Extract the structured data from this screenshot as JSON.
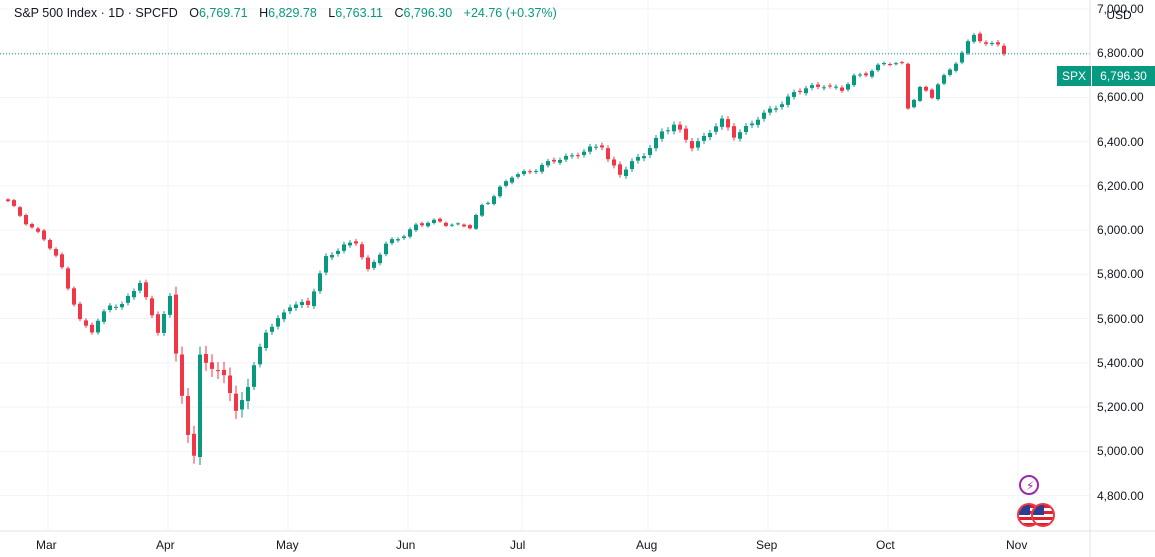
{
  "header": {
    "symbol": "S&P 500 Index · 1D · SPCFD",
    "open_label": "O",
    "open": "6,769.71",
    "high_label": "H",
    "high": "6,829.78",
    "low_label": "L",
    "low": "6,763.11",
    "close_label": "C",
    "close": "6,796.30",
    "change": "+24.76 (+0.37%)"
  },
  "currency": "USD",
  "last_price": {
    "symbol": "SPX",
    "value": "6,796.30"
  },
  "y_ticks": [
    "7,000.00",
    "6,800.00",
    "6,600.00",
    "6,400.00",
    "6,200.00",
    "6,000.00",
    "5,800.00",
    "5,600.00",
    "5,400.00",
    "5,200.00",
    "5,000.00",
    "4,800.00"
  ],
  "x_ticks": [
    "Mar",
    "Apr",
    "May",
    "Jun",
    "Jul",
    "Aug",
    "Sep",
    "Oct",
    "Nov"
  ],
  "icons": {
    "event": "lightning-icon",
    "economy": "us-flag-icon"
  },
  "colors": {
    "up": "#089981",
    "down": "#f23645",
    "grid": "#f0f3fa",
    "last_price_line": "#089981"
  },
  "chart_data": {
    "type": "candlestick",
    "ylim": [
      4640,
      7040
    ],
    "y_ticks": [
      4800,
      5000,
      5200,
      5400,
      5600,
      5800,
      6000,
      6200,
      6400,
      6600,
      6800,
      7000
    ],
    "x_month_labels": [
      "Mar",
      "Apr",
      "May",
      "Jun",
      "Jul",
      "Aug",
      "Sep",
      "Oct",
      "Nov"
    ],
    "last_price": 6796.3,
    "checkpoints": [
      {
        "i": 0,
        "v": 6125
      },
      {
        "i": 3,
        "v": 6040
      },
      {
        "i": 6,
        "v": 5960
      },
      {
        "i": 9,
        "v": 5830
      },
      {
        "i": 12,
        "v": 5590
      },
      {
        "i": 14,
        "v": 5540
      },
      {
        "i": 17,
        "v": 5670
      },
      {
        "i": 19,
        "v": 5660
      },
      {
        "i": 22,
        "v": 5760
      },
      {
        "i": 24,
        "v": 5620
      },
      {
        "i": 25,
        "v": 5550
      },
      {
        "i": 27,
        "v": 5690
      },
      {
        "i": 28,
        "v": 5440
      },
      {
        "i": 30,
        "v": 5070
      },
      {
        "i": 31,
        "v": 4980
      },
      {
        "i": 32,
        "v": 5450
      },
      {
        "i": 34,
        "v": 5360
      },
      {
        "i": 36,
        "v": 5350
      },
      {
        "i": 38,
        "v": 5180
      },
      {
        "i": 40,
        "v": 5300
      },
      {
        "i": 43,
        "v": 5540
      },
      {
        "i": 47,
        "v": 5660
      },
      {
        "i": 50,
        "v": 5660
      },
      {
        "i": 53,
        "v": 5880
      },
      {
        "i": 58,
        "v": 5950
      },
      {
        "i": 60,
        "v": 5820
      },
      {
        "i": 63,
        "v": 5930
      },
      {
        "i": 68,
        "v": 6020
      },
      {
        "i": 72,
        "v": 6040
      },
      {
        "i": 77,
        "v": 6010
      },
      {
        "i": 79,
        "v": 6110
      },
      {
        "i": 84,
        "v": 6240
      },
      {
        "i": 89,
        "v": 6290
      },
      {
        "i": 94,
        "v": 6340
      },
      {
        "i": 99,
        "v": 6380
      },
      {
        "i": 100,
        "v": 6320
      },
      {
        "i": 102,
        "v": 6260
      },
      {
        "i": 106,
        "v": 6340
      },
      {
        "i": 109,
        "v": 6450
      },
      {
        "i": 111,
        "v": 6470
      },
      {
        "i": 114,
        "v": 6380
      },
      {
        "i": 119,
        "v": 6490
      },
      {
        "i": 121,
        "v": 6430
      },
      {
        "i": 126,
        "v": 6520
      },
      {
        "i": 131,
        "v": 6620
      },
      {
        "i": 136,
        "v": 6660
      },
      {
        "i": 139,
        "v": 6630
      },
      {
        "i": 141,
        "v": 6690
      },
      {
        "i": 146,
        "v": 6750
      },
      {
        "i": 149,
        "v": 6750
      },
      {
        "i": 150,
        "v": 6560
      },
      {
        "i": 152,
        "v": 6640
      },
      {
        "i": 154,
        "v": 6600
      },
      {
        "i": 155,
        "v": 6660
      },
      {
        "i": 157,
        "v": 6730
      },
      {
        "i": 159,
        "v": 6800
      },
      {
        "i": 161,
        "v": 6880
      },
      {
        "i": 163,
        "v": 6840
      },
      {
        "i": 165,
        "v": 6850
      },
      {
        "i": 166,
        "v": 6800
      }
    ]
  }
}
